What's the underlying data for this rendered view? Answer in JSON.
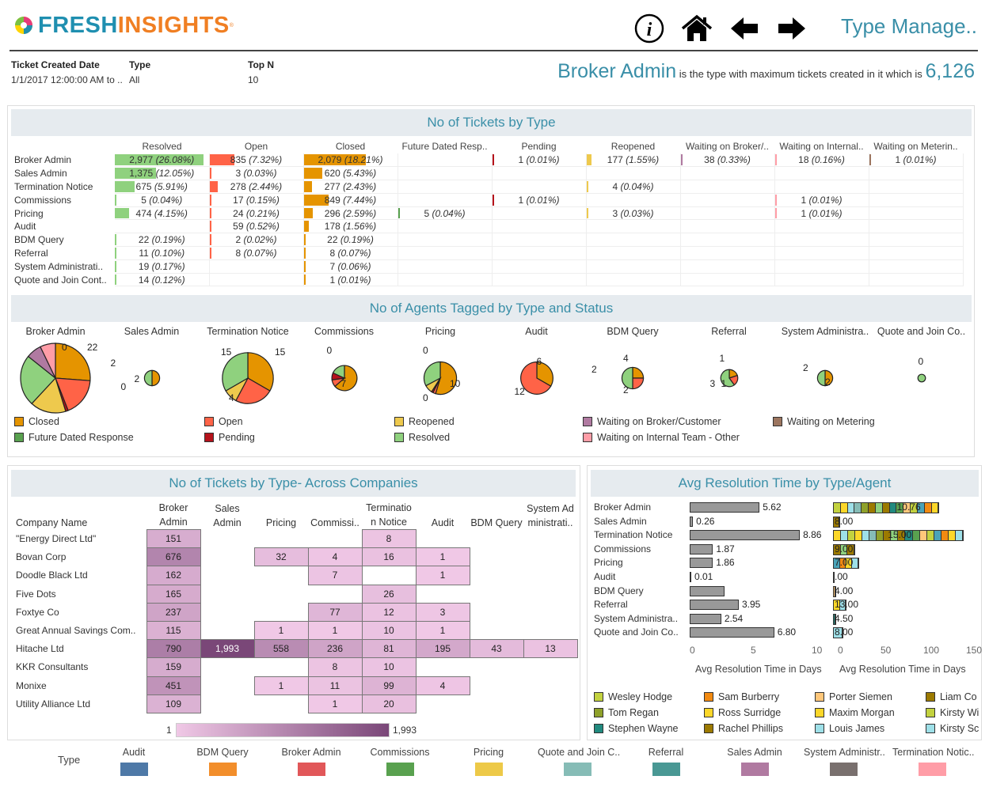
{
  "brand": {
    "part1": "FRESH",
    "part2": "INSIGHTS",
    "reg": "®"
  },
  "toolbar": {
    "icons": [
      "info-icon",
      "home-icon",
      "arrow-left-icon",
      "arrow-right-icon"
    ]
  },
  "page_title": "Type Manage..",
  "filters": [
    {
      "label": "Ticket Created Date",
      "value": "1/1/2017 12:00:00 AM to .."
    },
    {
      "label": "Type",
      "value": "All"
    },
    {
      "label": "Top N",
      "value": "10"
    }
  ],
  "headline": {
    "type": "Broker Admin",
    "text": "is the type with maximum tickets created in it which is",
    "value": "6,126"
  },
  "status_colors": {
    "Closed": "#e59400",
    "Open": "#ff6347",
    "Reopened": "#eec94d",
    "Waiting on Broker/Customer": "#b07aa1",
    "Waiting on Metering": "#9c755f",
    "Future Dated Response": "#59a14f",
    "Pending": "#b5121b",
    "Resolved": "#8fd17e",
    "Waiting on Internal Team - Other": "#ff9da7"
  },
  "tickets_by_type": {
    "title": "No of Tickets by Type",
    "columns": [
      "Resolved",
      "Open",
      "Closed",
      "Future Dated Resp..",
      "Pending",
      "Reopened",
      "Waiting on Broker/..",
      "Waiting on Internal..",
      "Waiting on Meterin.."
    ],
    "column_status": [
      "Resolved",
      "Open",
      "Closed",
      "Future Dated Response",
      "Pending",
      "Reopened",
      "Waiting on Broker/Customer",
      "Waiting on Internal Team - Other",
      "Waiting on Metering"
    ],
    "rows": [
      {
        "type": "Broker Admin",
        "cells": [
          [
            2977,
            "26.08%"
          ],
          [
            835,
            "7.32%"
          ],
          [
            2079,
            "18.21%"
          ],
          null,
          [
            1,
            "0.01%"
          ],
          [
            177,
            "1.55%"
          ],
          [
            38,
            "0.33%"
          ],
          [
            18,
            "0.16%"
          ],
          [
            1,
            "0.01%"
          ]
        ]
      },
      {
        "type": "Sales Admin",
        "cells": [
          [
            1375,
            "12.05%"
          ],
          [
            3,
            "0.03%"
          ],
          [
            620,
            "5.43%"
          ],
          null,
          null,
          null,
          null,
          null,
          null
        ]
      },
      {
        "type": "Termination Notice",
        "cells": [
          [
            675,
            "5.91%"
          ],
          [
            278,
            "2.44%"
          ],
          [
            277,
            "2.43%"
          ],
          null,
          null,
          [
            4,
            "0.04%"
          ],
          null,
          null,
          null
        ]
      },
      {
        "type": "Commissions",
        "cells": [
          [
            5,
            "0.04%"
          ],
          [
            17,
            "0.15%"
          ],
          [
            849,
            "7.44%"
          ],
          null,
          [
            1,
            "0.01%"
          ],
          null,
          null,
          [
            1,
            "0.01%"
          ],
          null
        ]
      },
      {
        "type": "Pricing",
        "cells": [
          [
            474,
            "4.15%"
          ],
          [
            24,
            "0.21%"
          ],
          [
            296,
            "2.59%"
          ],
          [
            5,
            "0.04%"
          ],
          null,
          [
            3,
            "0.03%"
          ],
          null,
          [
            1,
            "0.01%"
          ],
          null
        ]
      },
      {
        "type": "Audit",
        "cells": [
          null,
          [
            59,
            "0.52%"
          ],
          [
            178,
            "1.56%"
          ],
          null,
          null,
          null,
          null,
          null,
          null
        ]
      },
      {
        "type": "BDM Query",
        "cells": [
          [
            22,
            "0.19%"
          ],
          [
            2,
            "0.02%"
          ],
          [
            22,
            "0.19%"
          ],
          null,
          null,
          null,
          null,
          null,
          null
        ]
      },
      {
        "type": "Referral",
        "cells": [
          [
            11,
            "0.10%"
          ],
          [
            8,
            "0.07%"
          ],
          [
            8,
            "0.07%"
          ],
          null,
          null,
          null,
          null,
          null,
          null
        ]
      },
      {
        "type": "System Administrati..",
        "cells": [
          [
            19,
            "0.17%"
          ],
          null,
          [
            7,
            "0.06%"
          ],
          null,
          null,
          null,
          null,
          null,
          null
        ]
      },
      {
        "type": "Quote and Join Cont..",
        "cells": [
          [
            14,
            "0.12%"
          ],
          null,
          [
            1,
            "0.01%"
          ],
          null,
          null,
          null,
          null,
          null,
          null
        ]
      }
    ]
  },
  "agents_by_type": {
    "title": "No of Agents Tagged by Type and Status",
    "pies": [
      {
        "type": "Broker Admin",
        "slices": [
          [
            "Closed",
            22
          ],
          [
            "Open",
            15
          ],
          [
            "Pending",
            1
          ],
          [
            "Reopened",
            14
          ],
          [
            "Resolved",
            20
          ],
          [
            "Waiting on Broker/Customer",
            6
          ],
          [
            "Waiting on Internal Team - Other",
            6
          ],
          [
            "Waiting on Metering",
            0
          ]
        ],
        "labels": [
          "0",
          "22"
        ]
      },
      {
        "type": "Sales Admin",
        "slices": [
          [
            "Closed",
            2
          ],
          [
            "Open",
            0
          ],
          [
            "Resolved",
            2
          ]
        ],
        "labels": [
          "2",
          "2",
          "0"
        ]
      },
      {
        "type": "Termination Notice",
        "slices": [
          [
            "Closed",
            15
          ],
          [
            "Open",
            11
          ],
          [
            "Reopened",
            4
          ],
          [
            "Resolved",
            15
          ]
        ],
        "labels": [
          "15",
          "15",
          "4"
        ]
      },
      {
        "type": "Commissions",
        "slices": [
          [
            "Closed",
            7
          ],
          [
            "Open",
            1
          ],
          [
            "Pending",
            1
          ],
          [
            "Resolved",
            2
          ],
          [
            "Waiting on Internal Team - Other",
            0
          ]
        ],
        "labels": [
          "0",
          "7"
        ]
      },
      {
        "type": "Pricing",
        "slices": [
          [
            "Closed",
            10
          ],
          [
            "Open",
            0.5
          ],
          [
            "Pending",
            0.3
          ],
          [
            "Reopened",
            1.5
          ],
          [
            "Resolved",
            6
          ],
          [
            "Future Dated Response",
            0
          ]
        ],
        "labels": [
          "0",
          "10",
          "0"
        ]
      },
      {
        "type": "Audit",
        "slices": [
          [
            "Closed",
            6
          ],
          [
            "Open",
            12
          ]
        ],
        "labels": [
          "6",
          "12"
        ]
      },
      {
        "type": "BDM Query",
        "slices": [
          [
            "Closed",
            2
          ],
          [
            "Open",
            2
          ],
          [
            "Resolved",
            4
          ]
        ],
        "labels": [
          "2",
          "4",
          "2"
        ]
      },
      {
        "type": "Referral",
        "slices": [
          [
            "Closed",
            1
          ],
          [
            "Open",
            1
          ],
          [
            "Resolved",
            3
          ]
        ],
        "labels": [
          "1",
          "3",
          "1"
        ]
      },
      {
        "type": "System Administra..",
        "slices": [
          [
            "Closed",
            2
          ],
          [
            "Resolved",
            2
          ]
        ],
        "labels": [
          "2",
          "2"
        ]
      },
      {
        "type": "Quote and Join Co..",
        "slices": [
          [
            "Closed",
            0
          ],
          [
            "Resolved",
            1
          ]
        ],
        "labels": [
          "0"
        ]
      }
    ],
    "legend": [
      "Closed",
      "Open",
      "Reopened",
      "Waiting on Broker/Customer",
      "Waiting on Metering",
      "Future Dated Response",
      "Pending",
      "Resolved",
      "Waiting on Internal Team - Other"
    ]
  },
  "across_companies": {
    "title": "No of Tickets by Type- Across Companies",
    "row_header": "Company Name",
    "columns": [
      [
        "Broker",
        "Admin"
      ],
      [
        "Sales",
        "Admin"
      ],
      [
        "",
        "Pricing"
      ],
      [
        "",
        "Commissi.."
      ],
      [
        "Terminatio",
        "n Notice"
      ],
      [
        "",
        "Audit"
      ],
      [
        "",
        "BDM Query"
      ],
      [
        "System Ad",
        "ministrati.."
      ]
    ],
    "rows": [
      {
        "company": "\"Energy Direct Ltd\"",
        "values": [
          151,
          null,
          null,
          null,
          8,
          null,
          null,
          null
        ]
      },
      {
        "company": "Bovan Corp",
        "values": [
          676,
          null,
          32,
          4,
          16,
          1,
          null,
          null
        ]
      },
      {
        "company": "Doodle Black Ltd",
        "values": [
          162,
          null,
          null,
          7,
          null,
          1,
          null,
          null
        ]
      },
      {
        "company": "Five Dots",
        "values": [
          165,
          null,
          null,
          null,
          26,
          null,
          null,
          null
        ]
      },
      {
        "company": "Foxtye Co",
        "values": [
          237,
          null,
          null,
          77,
          12,
          3,
          null,
          null
        ]
      },
      {
        "company": "Great Annual Savings Com..",
        "values": [
          115,
          null,
          1,
          1,
          10,
          1,
          null,
          null
        ]
      },
      {
        "company": "Hitache Ltd",
        "values": [
          790,
          1993,
          558,
          236,
          81,
          195,
          43,
          13
        ]
      },
      {
        "company": "KKR Consultants",
        "values": [
          159,
          null,
          null,
          8,
          10,
          null,
          null,
          null
        ]
      },
      {
        "company": "Monixe",
        "values": [
          451,
          null,
          1,
          11,
          99,
          4,
          null,
          null
        ]
      },
      {
        "company": "Utility Alliance Ltd",
        "values": [
          109,
          null,
          null,
          1,
          20,
          null,
          null,
          null
        ]
      }
    ],
    "scale": {
      "min": 1,
      "max": 1993,
      "min_label": "1",
      "max_label": "1,993",
      "color_low": "#f0c8e6",
      "color_high": "#7a4778"
    }
  },
  "avg_resolution": {
    "title": "Avg Resolution Time by Type/Agent",
    "chart_data": {
      "type": "bar",
      "categories": [
        "Broker Admin",
        "Sales Admin",
        "Termination Notice",
        "Commissions",
        "Pricing",
        "Audit",
        "BDM Query",
        "Referral",
        "System Administra..",
        "Quote and Join Co.."
      ],
      "values": [
        5.62,
        0.26,
        8.86,
        1.87,
        1.86,
        0.01,
        2.8,
        3.95,
        2.54,
        6.8
      ],
      "value_labels": [
        "5.62",
        "0.26",
        "8.86",
        "1.87",
        "1.86",
        "0.01",
        "",
        "3.95",
        "2.54",
        "6.80"
      ],
      "xlabel": "Avg Resolution Time in Days",
      "xticks": [
        "0",
        "5",
        "10"
      ],
      "xlim": [
        0,
        10.5
      ]
    },
    "agent_chart_data": {
      "type": "bar",
      "stacked": true,
      "totals": [
        124,
        8,
        152,
        26,
        30,
        1,
        4,
        16,
        4,
        12
      ],
      "value_labels": [
        "10.76",
        "8.00",
        "15.00",
        "9.00",
        "7.00",
        ".00",
        "4.00",
        "13.00",
        "4.50",
        "8.00"
      ],
      "xlabel": "Avg Resolution Time in Days",
      "xticks": [
        "0",
        "50",
        "100",
        "150"
      ],
      "xlim": [
        0,
        155
      ]
    },
    "agents": [
      {
        "name": "Wesley Hodge",
        "color": "#c3d23f"
      },
      {
        "name": "Sam Burberry",
        "color": "#f28a11"
      },
      {
        "name": "Porter Siemen",
        "color": "#ffc77a"
      },
      {
        "name": "Liam Co",
        "color": "#9c7a00"
      },
      {
        "name": "Tom Regan",
        "color": "#8fa12a"
      },
      {
        "name": "Ross Surridge",
        "color": "#fcd729"
      },
      {
        "name": "Maxim Morgan",
        "color": "#fcd729"
      },
      {
        "name": "Kirsty Wi",
        "color": "#c3d23f"
      },
      {
        "name": "Stephen Wayne",
        "color": "#218a7f"
      },
      {
        "name": "Rachel Phillips",
        "color": "#9c7a00"
      },
      {
        "name": "Louis James",
        "color": "#9ee0e8"
      },
      {
        "name": "Kirsty Sc",
        "color": "#9ee0e8"
      }
    ]
  },
  "type_legend": {
    "title": "Type",
    "items": [
      {
        "label": "Audit",
        "color": "#4e79a7"
      },
      {
        "label": "BDM Query",
        "color": "#f28e2b"
      },
      {
        "label": "Broker Admin",
        "color": "#e15759"
      },
      {
        "label": "Commissions",
        "color": "#59a14f"
      },
      {
        "label": "Pricing",
        "color": "#edc948"
      },
      {
        "label": "Quote and Join C..",
        "color": "#86bcb6"
      },
      {
        "label": "Referral",
        "color": "#499894"
      },
      {
        "label": "Sales Admin",
        "color": "#b07aa1"
      },
      {
        "label": "System Administr..",
        "color": "#79706e"
      },
      {
        "label": "Termination Notic..",
        "color": "#ff9da7"
      }
    ]
  }
}
